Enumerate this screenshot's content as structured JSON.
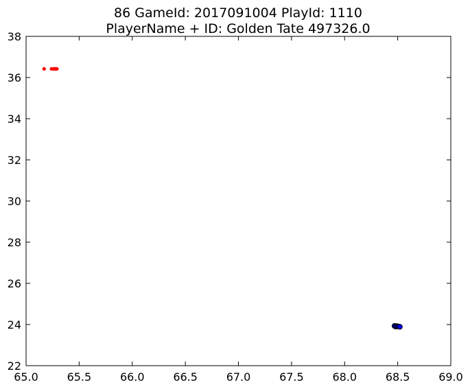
{
  "chart_data": {
    "type": "scatter",
    "title_line1": "86 GameId: 2017091004 PlayId: 1110",
    "title_line2": "PlayerName + ID: Golden Tate 497326.0",
    "xlabel": "",
    "ylabel": "",
    "xlim": [
      65.0,
      69.0
    ],
    "ylim": [
      22,
      38
    ],
    "xticks": [
      65.0,
      65.5,
      66.0,
      66.5,
      67.0,
      67.5,
      68.0,
      68.5,
      69.0
    ],
    "xtick_labels": [
      "65.0",
      "65.5",
      "66.0",
      "66.5",
      "67.0",
      "67.5",
      "68.0",
      "68.5",
      "69.0"
    ],
    "yticks": [
      22,
      24,
      26,
      28,
      30,
      32,
      34,
      36,
      38
    ],
    "ytick_labels": [
      "22",
      "24",
      "26",
      "28",
      "30",
      "32",
      "34",
      "36",
      "38"
    ],
    "grid": false,
    "series": [
      {
        "color": "#ff0000",
        "marker": "circle",
        "points": [
          {
            "x": 65.17,
            "y": 36.42
          },
          {
            "x": 65.24,
            "y": 36.42
          },
          {
            "x": 65.26,
            "y": 36.42
          },
          {
            "x": 65.27,
            "y": 36.42
          },
          {
            "x": 65.28,
            "y": 36.42
          },
          {
            "x": 65.29,
            "y": 36.42
          }
        ]
      },
      {
        "color": "#0000ff",
        "marker": "circle",
        "points": [
          {
            "x": 68.47,
            "y": 23.93
          },
          {
            "x": 68.48,
            "y": 23.9
          },
          {
            "x": 68.49,
            "y": 23.92
          },
          {
            "x": 68.5,
            "y": 23.91
          },
          {
            "x": 68.51,
            "y": 23.9
          },
          {
            "x": 68.52,
            "y": 23.89
          }
        ]
      }
    ]
  }
}
